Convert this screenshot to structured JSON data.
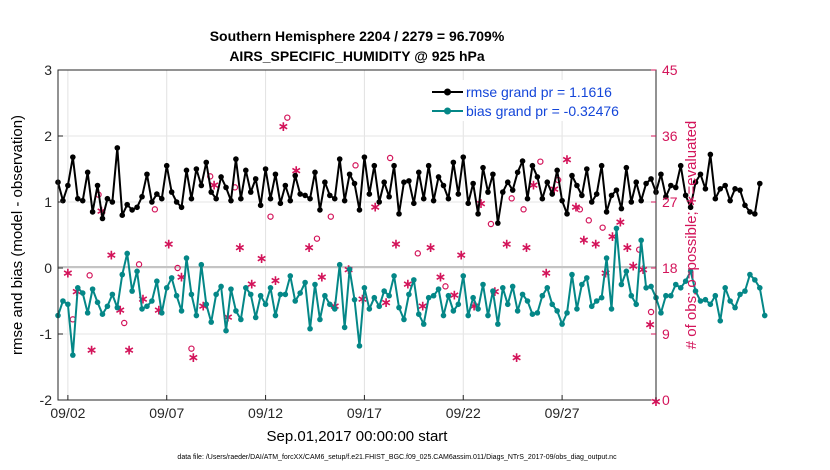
{
  "chart_data": {
    "type": "line",
    "title": "Southern Hemisphere 2204 / 2279 = 96.709%",
    "subtitle": "AIRS_SPECIFIC_HUMIDITY @ 925 hPa",
    "xlabel": "Sep.01,2017 00:00:00 start",
    "ylabel": "rmse and bias (model - observation)",
    "y2label": "# of obs: o=possible; ∗=evaluated",
    "xlim": [
      1.5,
      31.75
    ],
    "ylim": [
      -2,
      3
    ],
    "y2lim": [
      0,
      45
    ],
    "x_tick_values": [
      2,
      7,
      12,
      17,
      22,
      27
    ],
    "x_tick_labels": [
      "09/02",
      "09/07",
      "09/12",
      "09/17",
      "09/22",
      "09/27"
    ],
    "y_ticks": [
      "-2",
      "-1",
      "0",
      "1",
      "2",
      "3"
    ],
    "y2_ticks": [
      "0",
      "9",
      "18",
      "27",
      "36",
      "45"
    ],
    "legend": [
      "rmse grand pr = 1.1616",
      "bias grand pr = -0.32476"
    ],
    "footnote": "data file: /Users/raeder/DAI/ATM_forcXX/CAM6_setup/f.e21.FHIST_BGC.f09_025.CAM6assim.011/Diags_NTrS_2017-09/obs_diag_output.nc",
    "x_start": 1.5,
    "x_step": 0.25,
    "series": [
      {
        "name": "rmse",
        "color": "#000000",
        "values": [
          1.3,
          1.02,
          1.25,
          1.68,
          1.05,
          1.02,
          1.45,
          0.85,
          1.25,
          0.75,
          1.05,
          1.0,
          1.82,
          0.8,
          0.96,
          0.88,
          0.92,
          1.08,
          1.42,
          1.0,
          1.12,
          1.05,
          1.55,
          1.15,
          1.0,
          0.92,
          1.48,
          1.05,
          1.5,
          1.25,
          1.6,
          1.15,
          1.05,
          1.38,
          1.22,
          1.02,
          1.65,
          1.05,
          1.48,
          1.15,
          1.35,
          0.95,
          1.5,
          1.05,
          1.42,
          0.98,
          1.25,
          1.02,
          1.4,
          1.12,
          1.1,
          1.05,
          1.45,
          0.88,
          1.3,
          1.1,
          1.05,
          1.65,
          1.02,
          1.42,
          1.28,
          0.88,
          1.68,
          1.12,
          1.55,
          1.0,
          1.3,
          1.08,
          1.55,
          0.82,
          1.3,
          1.32,
          0.98,
          1.45,
          1.05,
          1.55,
          1.02,
          1.38,
          1.25,
          1.05,
          1.6,
          1.12,
          1.68,
          0.98,
          1.28,
          0.82,
          1.52,
          1.15,
          1.42,
          0.68,
          1.15,
          1.3,
          1.18,
          1.45,
          1.62,
          1.05,
          1.55,
          1.38,
          1.05,
          1.3,
          1.12,
          1.48,
          1.02,
          0.82,
          1.4,
          1.25,
          1.1,
          1.5,
          1.0,
          1.12,
          1.55,
          0.85,
          1.1,
          1.18,
          0.9,
          1.52,
          1.0,
          1.3,
          1.02,
          1.28,
          1.35,
          1.15,
          1.42,
          1.08,
          1.25,
          1.22,
          1.55,
          1.1,
          0.92,
          1.3,
          1.42,
          1.2,
          1.72,
          1.05,
          1.2,
          1.25,
          1.02,
          1.2,
          1.18,
          0.95,
          0.85,
          0.82,
          1.28
        ]
      },
      {
        "name": "bias",
        "color": "#048787",
        "values": [
          -0.72,
          -0.5,
          -0.55,
          -1.32,
          -0.3,
          -0.38,
          -0.68,
          -0.32,
          -0.52,
          -0.7,
          -0.58,
          -0.4,
          -0.6,
          -0.1,
          0.22,
          -0.35,
          -0.05,
          -0.62,
          -0.58,
          -0.5,
          -0.2,
          -0.68,
          -0.3,
          -0.15,
          -0.42,
          -0.65,
          0.15,
          -0.4,
          -0.72,
          0.05,
          -0.55,
          -0.82,
          -0.4,
          -0.28,
          -0.95,
          -0.32,
          -0.65,
          -0.78,
          -0.3,
          -0.4,
          -0.75,
          -0.42,
          -0.55,
          -0.3,
          -0.72,
          -0.4,
          -0.4,
          -0.12,
          -0.5,
          -0.38,
          -0.22,
          -0.92,
          -0.25,
          -0.78,
          -0.42,
          -0.55,
          -0.62,
          0.05,
          -0.9,
          -0.02,
          -0.48,
          -1.18,
          -0.3,
          -0.62,
          -0.45,
          -0.58,
          -0.35,
          -0.42,
          -0.12,
          -0.6,
          -0.78,
          -0.4,
          -0.18,
          -0.7,
          -0.85,
          -0.45,
          -0.42,
          -0.32,
          -0.72,
          -0.42,
          -0.65,
          -0.55,
          -0.12,
          -0.72,
          -0.45,
          -0.62,
          -0.25,
          -0.72,
          -0.35,
          -0.85,
          -0.3,
          -0.55,
          -0.28,
          -0.65,
          -0.4,
          -0.5,
          -0.7,
          -0.68,
          -0.42,
          -0.3,
          -0.55,
          -0.65,
          -0.85,
          -0.68,
          -0.1,
          -0.62,
          -0.25,
          -0.15,
          -0.58,
          -0.5,
          -0.45,
          0.15,
          -0.62,
          0.6,
          -0.25,
          -0.05,
          -0.42,
          -0.55,
          0.42,
          -0.3,
          -0.28,
          -0.45,
          -0.68,
          -0.42,
          -0.42,
          -0.25,
          -0.3,
          -0.2,
          -0.05,
          -0.35,
          -0.5,
          -0.48,
          -0.55,
          -0.42,
          -0.8,
          -0.3,
          -0.5,
          -0.6,
          -0.4,
          -0.35,
          -0.1,
          -0.18,
          -0.3,
          -0.72
        ]
      }
    ],
    "obs_possible": [
      {
        "x": 2.25,
        "y": 11
      },
      {
        "x": 3.1,
        "y": 17
      },
      {
        "x": 3.55,
        "y": 28
      },
      {
        "x": 4.85,
        "y": 10.5
      },
      {
        "x": 5.6,
        "y": 18.5
      },
      {
        "x": 6.4,
        "y": 26
      },
      {
        "x": 7.55,
        "y": 18
      },
      {
        "x": 8.25,
        "y": 7
      },
      {
        "x": 9.2,
        "y": 30.5
      },
      {
        "x": 10.45,
        "y": 29
      },
      {
        "x": 12.25,
        "y": 25
      },
      {
        "x": 13.1,
        "y": 38.5
      },
      {
        "x": 14.6,
        "y": 22
      },
      {
        "x": 15.3,
        "y": 25
      },
      {
        "x": 16.55,
        "y": 32
      },
      {
        "x": 18.3,
        "y": 33
      },
      {
        "x": 19.7,
        "y": 20
      },
      {
        "x": 21.1,
        "y": 15.5
      },
      {
        "x": 23.4,
        "y": 24
      },
      {
        "x": 24.45,
        "y": 27.5
      },
      {
        "x": 25.05,
        "y": 26
      },
      {
        "x": 25.9,
        "y": 32.5
      },
      {
        "x": 26.8,
        "y": 30
      },
      {
        "x": 27.9,
        "y": 26
      },
      {
        "x": 28.35,
        "y": 24.5
      },
      {
        "x": 29.05,
        "y": 23.5
      },
      {
        "x": 30.9,
        "y": 20.5
      },
      {
        "x": 31.5,
        "y": 12
      }
    ],
    "obs_evaluated": [
      {
        "x": 2.0,
        "y": 17.5
      },
      {
        "x": 2.45,
        "y": 15
      },
      {
        "x": 3.2,
        "y": 7
      },
      {
        "x": 3.7,
        "y": 26
      },
      {
        "x": 4.2,
        "y": 20
      },
      {
        "x": 4.65,
        "y": 12.5
      },
      {
        "x": 5.1,
        "y": 7
      },
      {
        "x": 5.8,
        "y": 14
      },
      {
        "x": 6.6,
        "y": 12.5
      },
      {
        "x": 7.1,
        "y": 21.5
      },
      {
        "x": 7.75,
        "y": 17
      },
      {
        "x": 8.35,
        "y": 6
      },
      {
        "x": 8.85,
        "y": 13
      },
      {
        "x": 9.4,
        "y": 29.5
      },
      {
        "x": 10.1,
        "y": 11.5
      },
      {
        "x": 10.7,
        "y": 21
      },
      {
        "x": 11.3,
        "y": 16
      },
      {
        "x": 11.8,
        "y": 19.5
      },
      {
        "x": 12.5,
        "y": 16.5
      },
      {
        "x": 12.9,
        "y": 37.5
      },
      {
        "x": 13.55,
        "y": 31.5
      },
      {
        "x": 14.2,
        "y": 21
      },
      {
        "x": 14.85,
        "y": 17
      },
      {
        "x": 15.5,
        "y": 13
      },
      {
        "x": 16.2,
        "y": 18
      },
      {
        "x": 16.9,
        "y": 14
      },
      {
        "x": 17.55,
        "y": 26.5
      },
      {
        "x": 18.1,
        "y": 13.5
      },
      {
        "x": 18.6,
        "y": 21.5
      },
      {
        "x": 19.2,
        "y": 16
      },
      {
        "x": 19.95,
        "y": 13
      },
      {
        "x": 20.35,
        "y": 21
      },
      {
        "x": 20.85,
        "y": 17
      },
      {
        "x": 21.55,
        "y": 14.5
      },
      {
        "x": 21.9,
        "y": 20
      },
      {
        "x": 22.55,
        "y": 13
      },
      {
        "x": 22.9,
        "y": 27
      },
      {
        "x": 23.6,
        "y": 15
      },
      {
        "x": 24.2,
        "y": 21.5
      },
      {
        "x": 24.7,
        "y": 6
      },
      {
        "x": 25.2,
        "y": 21
      },
      {
        "x": 25.55,
        "y": 29.5
      },
      {
        "x": 26.2,
        "y": 17.5
      },
      {
        "x": 26.6,
        "y": 29
      },
      {
        "x": 27.25,
        "y": 33
      },
      {
        "x": 27.7,
        "y": 26.5
      },
      {
        "x": 28.1,
        "y": 22
      },
      {
        "x": 28.7,
        "y": 21.5
      },
      {
        "x": 29.2,
        "y": 17.5
      },
      {
        "x": 29.55,
        "y": 22.5
      },
      {
        "x": 29.95,
        "y": 24.5
      },
      {
        "x": 30.3,
        "y": 21
      },
      {
        "x": 30.6,
        "y": 18.5
      },
      {
        "x": 31.1,
        "y": 18
      },
      {
        "x": 31.45,
        "y": 10.5
      },
      {
        "x": 31.75,
        "y": 0
      }
    ]
  }
}
